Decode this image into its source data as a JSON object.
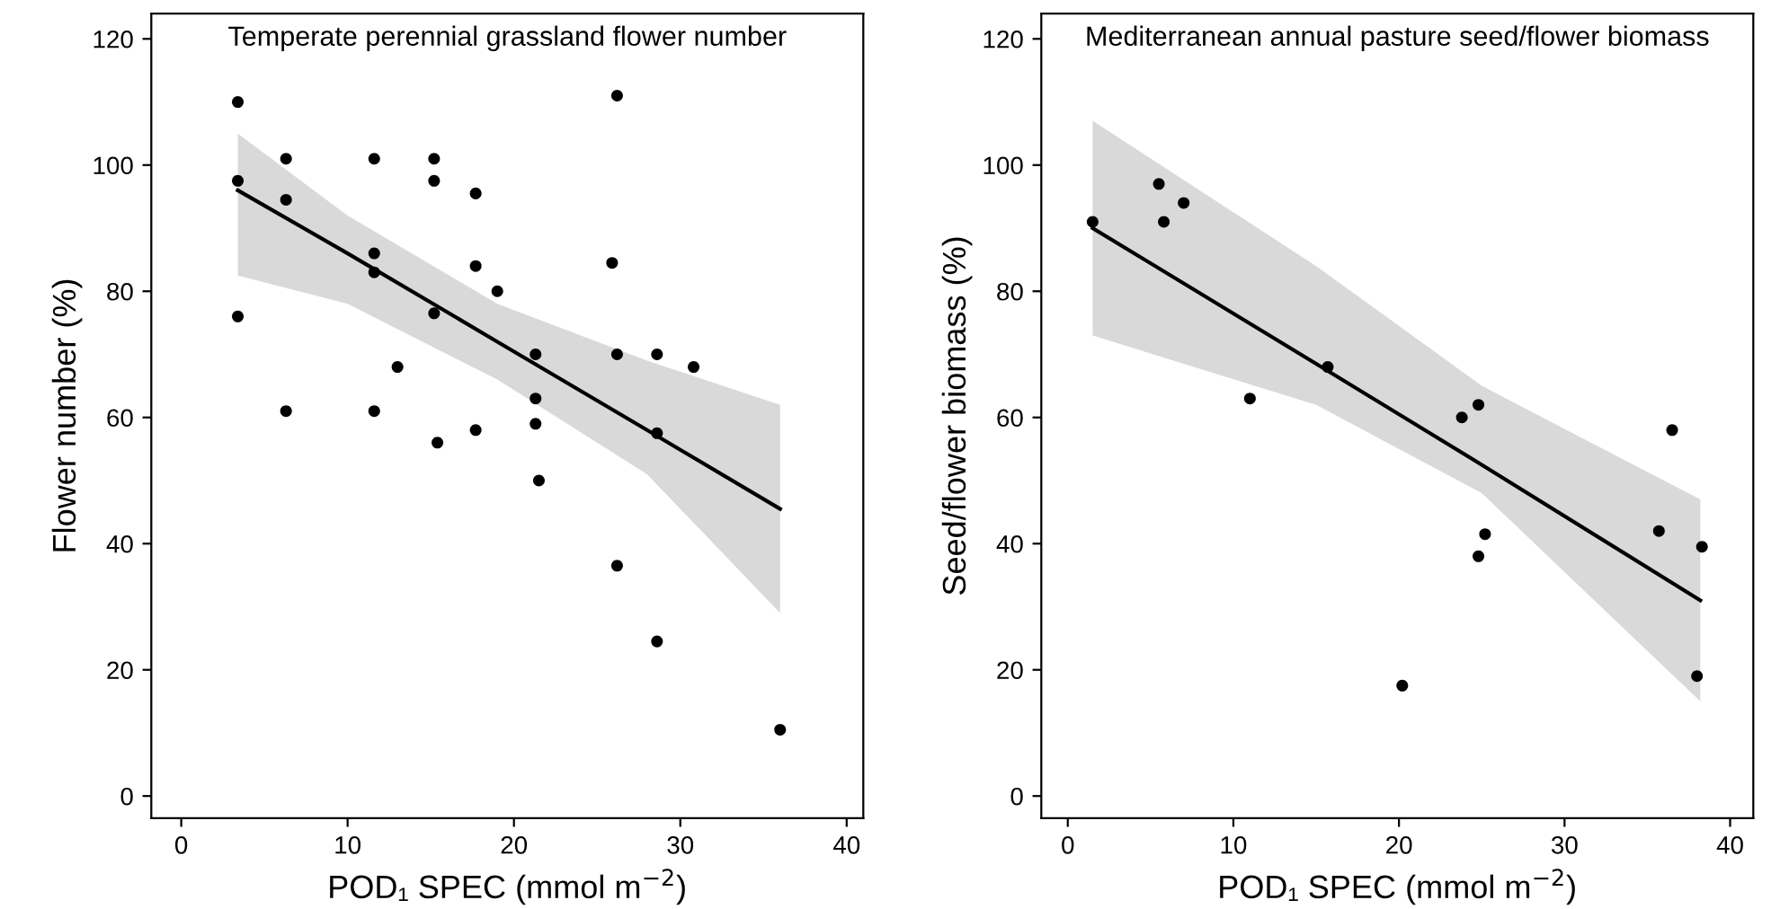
{
  "chart_data": [
    {
      "type": "scatter",
      "title": "Temperate perennial grassland flower number",
      "xlabel": "POD₁ SPEC (mmol m$^{−2}$)",
      "ylabel": "Flower number (%)",
      "xlim": [
        -1.8,
        41
      ],
      "ylim": [
        -3.5,
        124
      ],
      "xticks": [
        0,
        10,
        20,
        30,
        40
      ],
      "yticks": [
        0,
        20,
        40,
        60,
        80,
        100,
        120
      ],
      "grid": false,
      "legend": false,
      "series": [
        {
          "marker": "circle",
          "color": "#000000",
          "x": [
            3.4,
            3.4,
            3.4,
            6.3,
            6.3,
            6.3,
            11.6,
            11.6,
            11.6,
            11.6,
            13,
            15.2,
            15.2,
            15.2,
            15.4,
            17.7,
            17.7,
            17.7,
            19,
            21.3,
            21.3,
            21.3,
            21.5,
            25.9,
            26.2,
            26.2,
            26.2,
            28.6,
            28.6,
            28.6,
            30.8,
            36
          ],
          "values": [
            110,
            97.5,
            76,
            101,
            94.5,
            61,
            101,
            86,
            83,
            61,
            68,
            101,
            97.5,
            76.5,
            56,
            95.5,
            84,
            58,
            80,
            70,
            63,
            59,
            50,
            84.5,
            111,
            70,
            36.5,
            70,
            57.5,
            24.5,
            68,
            10.5
          ]
        },
        {
          "type": "line",
          "marker": "none",
          "color": "#000000",
          "x": [
            3.4,
            10,
            19,
            28,
            36
          ],
          "values": [
            96,
            86,
            72,
            58,
            45.5
          ],
          "lower": [
            82.5,
            78,
            66,
            51,
            29
          ],
          "upper": [
            105,
            92,
            78,
            69,
            62
          ]
        }
      ]
    },
    {
      "type": "scatter",
      "title": "Mediterranean annual pasture seed/flower biomass",
      "xlabel": "POD₁ SPEC (mmol m$^{−2}$)",
      "ylabel": "Seed/flower biomass (%)",
      "xlim": [
        -1.6,
        41.4
      ],
      "ylim": [
        -3.5,
        124
      ],
      "xticks": [
        0,
        10,
        20,
        30,
        40
      ],
      "yticks": [
        0,
        20,
        40,
        60,
        80,
        100,
        120
      ],
      "grid": false,
      "legend": false,
      "series": [
        {
          "marker": "circle",
          "color": "#000000",
          "x": [
            1.5,
            5.5,
            5.8,
            7,
            11,
            15.7,
            20.2,
            23.8,
            24.8,
            24.8,
            25.2,
            36.5,
            35.7,
            38.3,
            38
          ],
          "values": [
            91,
            97,
            91,
            94,
            63,
            68,
            17.5,
            60,
            62,
            38,
            41.5,
            58,
            42,
            39.5,
            19
          ]
        },
        {
          "type": "line",
          "marker": "none",
          "color": "#000000",
          "x": [
            1.5,
            15,
            25,
            38.2
          ],
          "values": [
            90,
            68.5,
            52.5,
            31
          ],
          "lower": [
            73,
            62,
            48,
            15
          ],
          "upper": [
            107,
            84,
            65,
            47
          ]
        }
      ]
    }
  ]
}
